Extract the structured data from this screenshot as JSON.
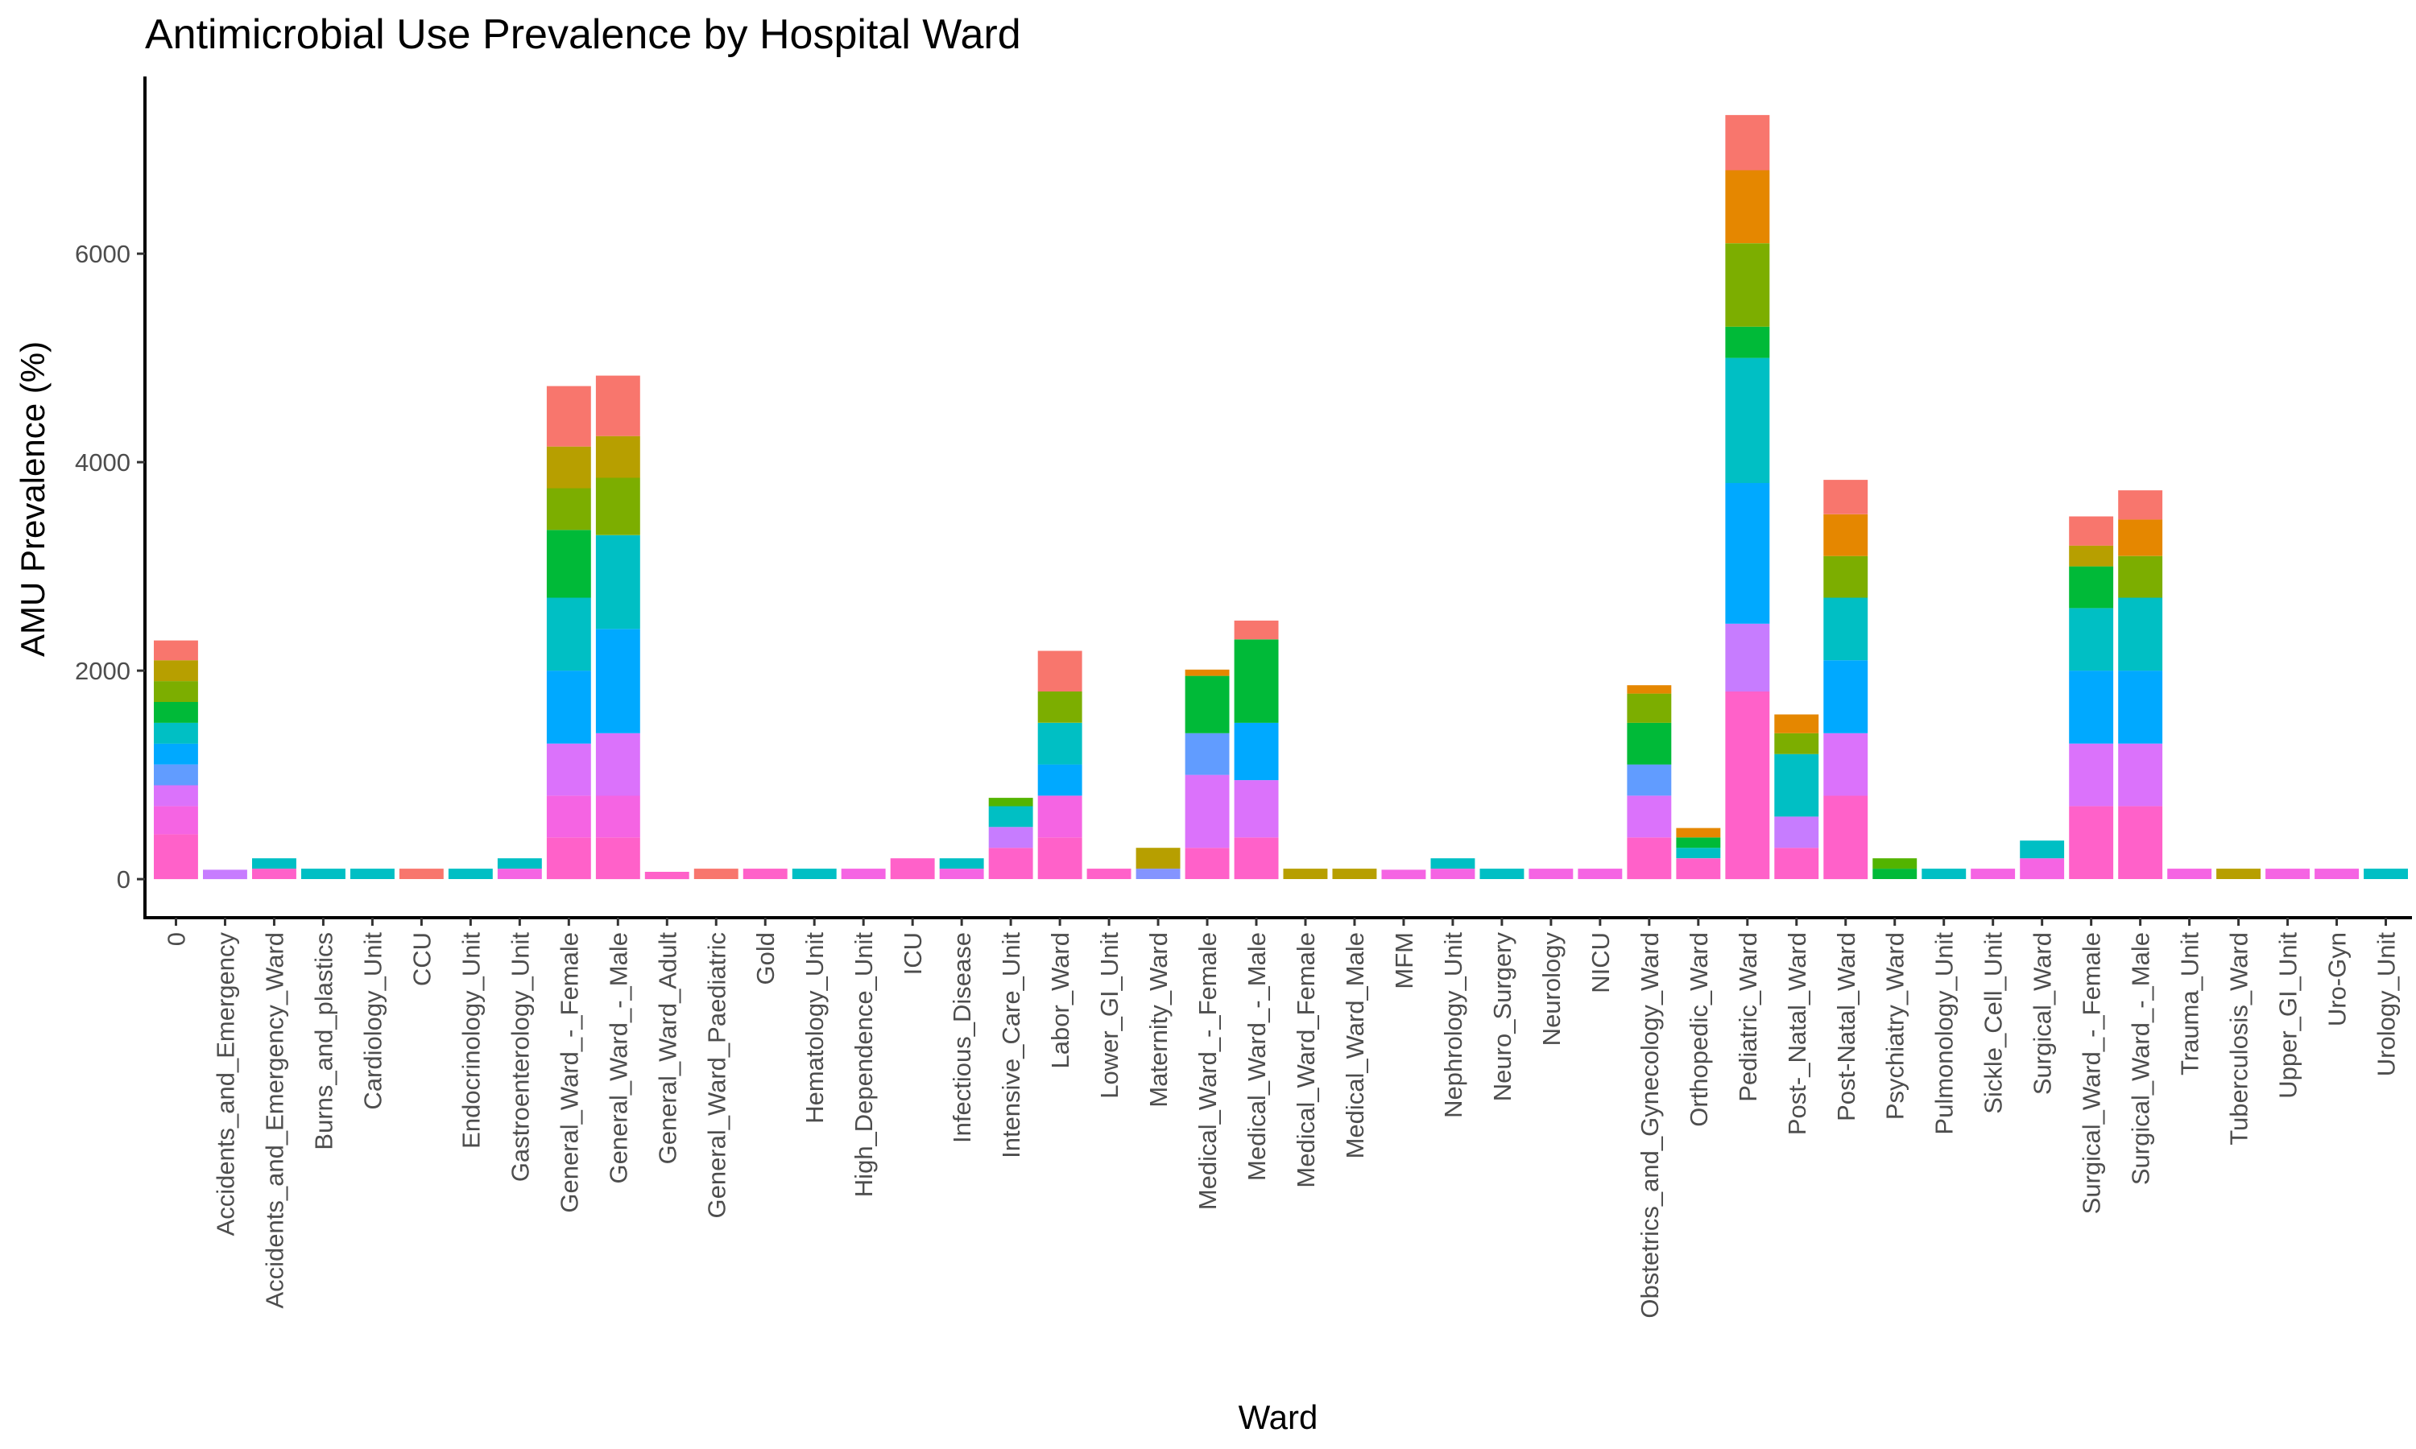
{
  "chart_data": {
    "type": "bar",
    "stacked": true,
    "title": "Antimicrobial Use Prevalence by Hospital Ward",
    "xlabel": "Ward",
    "ylabel": "AMU Prevalence (%)",
    "ylim": [
      -370,
      7700
    ],
    "yticks": [
      0,
      2000,
      4000,
      6000
    ],
    "grid": false,
    "legend": "none",
    "categories": [
      "0",
      "Accidents_and_Emergency",
      "Accidents_and_Emergency_Ward",
      "Burns_and_plastics",
      "Cardiology_Unit",
      "CCU",
      "Endocrinology_Unit",
      "Gastroenterology_Unit",
      "General_Ward_-_Female",
      "General_Ward_-_Male",
      "General_Ward_Adult",
      "General_Ward_Paediatric",
      "Gold",
      "Hematology_Unit",
      "High_Dependence_Unit",
      "ICU",
      "Infectious_Disease",
      "Intensive_Care_Unit",
      "Labor_Ward",
      "Lower_GI_Unit",
      "Maternity_Ward",
      "Medical_Ward_-_Female",
      "Medical_Ward_-_Male",
      "Medical_Ward_Female",
      "Medical_Ward_Male",
      "MFM",
      "Nephrology_Unit",
      "Neuro_Surgery",
      "Neurology",
      "NICU",
      "Obstetrics_and_Gynecology_Ward",
      "Orthopedic_Ward",
      "Pediatric_Ward",
      "Post-_Natal_Ward",
      "Post-Natal_Ward",
      "Psychiatry_Ward",
      "Pulmonology_Unit",
      "Sickle_Cell_Unit",
      "Surgical_Ward",
      "Surgical_Ward_-_Female",
      "Surgical_Ward_-_Male",
      "Trauma_Unit",
      "Tuberculosis_Ward",
      "Upper_GI_Unit",
      "Uro-Gyn",
      "Urology_Unit"
    ],
    "totals": [
      2290,
      90,
      200,
      100,
      100,
      100,
      100,
      200,
      4730,
      4830,
      70,
      100,
      100,
      100,
      100,
      200,
      200,
      780,
      2190,
      100,
      300,
      2010,
      2480,
      100,
      100,
      90,
      200,
      100,
      100,
      100,
      1860,
      490,
      7330,
      1580,
      3830,
      200,
      100,
      100,
      370,
      3480,
      3730,
      100,
      100,
      100,
      100,
      100
    ],
    "segments": [
      [
        [
          0,
          430,
          "#FF61C9"
        ],
        [
          430,
          700,
          "#F564E3"
        ],
        [
          700,
          900,
          "#DB72FB"
        ],
        [
          900,
          1100,
          "#619CFF"
        ],
        [
          1100,
          1300,
          "#00A9FF"
        ],
        [
          1300,
          1500,
          "#00BFC4"
        ],
        [
          1500,
          1700,
          "#00BA38"
        ],
        [
          1700,
          1900,
          "#7CAE00"
        ],
        [
          1900,
          2100,
          "#B79F00"
        ],
        [
          2100,
          2290,
          "#F8766D"
        ]
      ],
      [
        [
          0,
          90,
          "#C77CFF"
        ]
      ],
      [
        [
          0,
          100,
          "#FF61C9"
        ],
        [
          100,
          200,
          "#00BFC4"
        ]
      ],
      [
        [
          0,
          100,
          "#00BFC4"
        ]
      ],
      [
        [
          0,
          100,
          "#00BFC4"
        ]
      ],
      [
        [
          0,
          100,
          "#F8766D"
        ]
      ],
      [
        [
          0,
          100,
          "#00BFC4"
        ]
      ],
      [
        [
          0,
          100,
          "#F564E3"
        ],
        [
          100,
          200,
          "#00BFC4"
        ]
      ],
      [
        [
          0,
          400,
          "#FF61C9"
        ],
        [
          400,
          800,
          "#F564E3"
        ],
        [
          800,
          1300,
          "#DB72FB"
        ],
        [
          1300,
          2000,
          "#00A9FF"
        ],
        [
          2000,
          2700,
          "#00BFC4"
        ],
        [
          2700,
          3350,
          "#00BA38"
        ],
        [
          3350,
          3750,
          "#7CAE00"
        ],
        [
          3750,
          4150,
          "#B79F00"
        ],
        [
          4150,
          4730,
          "#F8766D"
        ]
      ],
      [
        [
          0,
          400,
          "#FF61C9"
        ],
        [
          400,
          800,
          "#F564E3"
        ],
        [
          800,
          1400,
          "#DB72FB"
        ],
        [
          1400,
          2400,
          "#00A9FF"
        ],
        [
          2400,
          3300,
          "#00BFC4"
        ],
        [
          3300,
          3850,
          "#7CAE00"
        ],
        [
          3850,
          4250,
          "#B79F00"
        ],
        [
          4250,
          4830,
          "#F8766D"
        ]
      ],
      [
        [
          0,
          70,
          "#FF61C9"
        ]
      ],
      [
        [
          0,
          100,
          "#F8766D"
        ]
      ],
      [
        [
          0,
          100,
          "#FF61C9"
        ]
      ],
      [
        [
          0,
          100,
          "#00BFC4"
        ]
      ],
      [
        [
          0,
          100,
          "#F564E3"
        ]
      ],
      [
        [
          0,
          200,
          "#FF61C9"
        ]
      ],
      [
        [
          0,
          100,
          "#F564E3"
        ],
        [
          100,
          200,
          "#00BFC4"
        ]
      ],
      [
        [
          0,
          300,
          "#FF61C9"
        ],
        [
          300,
          500,
          "#C77CFF"
        ],
        [
          500,
          700,
          "#00BFC4"
        ],
        [
          700,
          780,
          "#53B400"
        ]
      ],
      [
        [
          0,
          400,
          "#FF61C9"
        ],
        [
          400,
          800,
          "#F564E3"
        ],
        [
          800,
          1100,
          "#00A9FF"
        ],
        [
          1100,
          1500,
          "#00BFC4"
        ],
        [
          1500,
          1800,
          "#7CAE00"
        ],
        [
          1800,
          2190,
          "#F8766D"
        ]
      ],
      [
        [
          0,
          100,
          "#FF61C9"
        ]
      ],
      [
        [
          0,
          100,
          "#8494FF"
        ],
        [
          100,
          300,
          "#B79F00"
        ]
      ],
      [
        [
          0,
          300,
          "#FF61C9"
        ],
        [
          300,
          1000,
          "#DB72FB"
        ],
        [
          1000,
          1400,
          "#619CFF"
        ],
        [
          1400,
          1950,
          "#00BA38"
        ],
        [
          1950,
          2010,
          "#E58700"
        ]
      ],
      [
        [
          0,
          400,
          "#FF61C9"
        ],
        [
          400,
          950,
          "#DB72FB"
        ],
        [
          950,
          1500,
          "#00A9FF"
        ],
        [
          1500,
          2300,
          "#00BA38"
        ],
        [
          2300,
          2480,
          "#F8766D"
        ]
      ],
      [
        [
          0,
          100,
          "#B79F00"
        ]
      ],
      [
        [
          0,
          100,
          "#B79F00"
        ]
      ],
      [
        [
          0,
          90,
          "#F564E3"
        ]
      ],
      [
        [
          0,
          100,
          "#F564E3"
        ],
        [
          100,
          200,
          "#00BFC4"
        ]
      ],
      [
        [
          0,
          100,
          "#00BFC4"
        ]
      ],
      [
        [
          0,
          100,
          "#F564E3"
        ]
      ],
      [
        [
          0,
          100,
          "#F564E3"
        ]
      ],
      [
        [
          0,
          400,
          "#FF61C9"
        ],
        [
          400,
          800,
          "#DB72FB"
        ],
        [
          800,
          1100,
          "#619CFF"
        ],
        [
          1100,
          1500,
          "#00BA38"
        ],
        [
          1500,
          1780,
          "#7CAE00"
        ],
        [
          1780,
          1860,
          "#E58700"
        ]
      ],
      [
        [
          0,
          200,
          "#FF61C9"
        ],
        [
          200,
          300,
          "#00BFC4"
        ],
        [
          300,
          400,
          "#00BA38"
        ],
        [
          400,
          490,
          "#E58700"
        ]
      ],
      [
        [
          0,
          1800,
          "#FF61C9"
        ],
        [
          1800,
          2450,
          "#C77CFF"
        ],
        [
          2450,
          3800,
          "#00A9FF"
        ],
        [
          3800,
          5000,
          "#00BFC4"
        ],
        [
          5000,
          5300,
          "#00BA38"
        ],
        [
          5300,
          6100,
          "#7CAE00"
        ],
        [
          6100,
          6800,
          "#E58700"
        ],
        [
          6800,
          7330,
          "#F8766D"
        ]
      ],
      [
        [
          0,
          300,
          "#FF61C9"
        ],
        [
          300,
          600,
          "#C77CFF"
        ],
        [
          600,
          1200,
          "#00BFC4"
        ],
        [
          1200,
          1400,
          "#7CAE00"
        ],
        [
          1400,
          1580,
          "#E58700"
        ]
      ],
      [
        [
          0,
          800,
          "#FF61C9"
        ],
        [
          800,
          1400,
          "#DB72FB"
        ],
        [
          1400,
          2100,
          "#00A9FF"
        ],
        [
          2100,
          2700,
          "#00BFC4"
        ],
        [
          2700,
          3100,
          "#7CAE00"
        ],
        [
          3100,
          3500,
          "#E58700"
        ],
        [
          3500,
          3830,
          "#F8766D"
        ]
      ],
      [
        [
          0,
          100,
          "#00BA38"
        ],
        [
          100,
          200,
          "#53B400"
        ]
      ],
      [
        [
          0,
          100,
          "#00BFC4"
        ]
      ],
      [
        [
          0,
          100,
          "#F564E3"
        ]
      ],
      [
        [
          0,
          200,
          "#F564E3"
        ],
        [
          200,
          370,
          "#00BFC4"
        ]
      ],
      [
        [
          0,
          700,
          "#FF61C9"
        ],
        [
          700,
          1300,
          "#DB72FB"
        ],
        [
          1300,
          2000,
          "#00A9FF"
        ],
        [
          2000,
          2600,
          "#00BFC4"
        ],
        [
          2600,
          3000,
          "#00BA38"
        ],
        [
          3000,
          3200,
          "#B79F00"
        ],
        [
          3200,
          3480,
          "#F8766D"
        ]
      ],
      [
        [
          0,
          700,
          "#FF61C9"
        ],
        [
          700,
          1300,
          "#DB72FB"
        ],
        [
          1300,
          2000,
          "#00A9FF"
        ],
        [
          2000,
          2700,
          "#00BFC4"
        ],
        [
          2700,
          3100,
          "#7CAE00"
        ],
        [
          3100,
          3450,
          "#E58700"
        ],
        [
          3450,
          3730,
          "#F8766D"
        ]
      ],
      [
        [
          0,
          100,
          "#F564E3"
        ]
      ],
      [
        [
          0,
          100,
          "#B79F00"
        ]
      ],
      [
        [
          0,
          100,
          "#F564E3"
        ]
      ],
      [
        [
          0,
          100,
          "#F564E3"
        ]
      ],
      [
        [
          0,
          100,
          "#00BFC4"
        ]
      ]
    ]
  }
}
